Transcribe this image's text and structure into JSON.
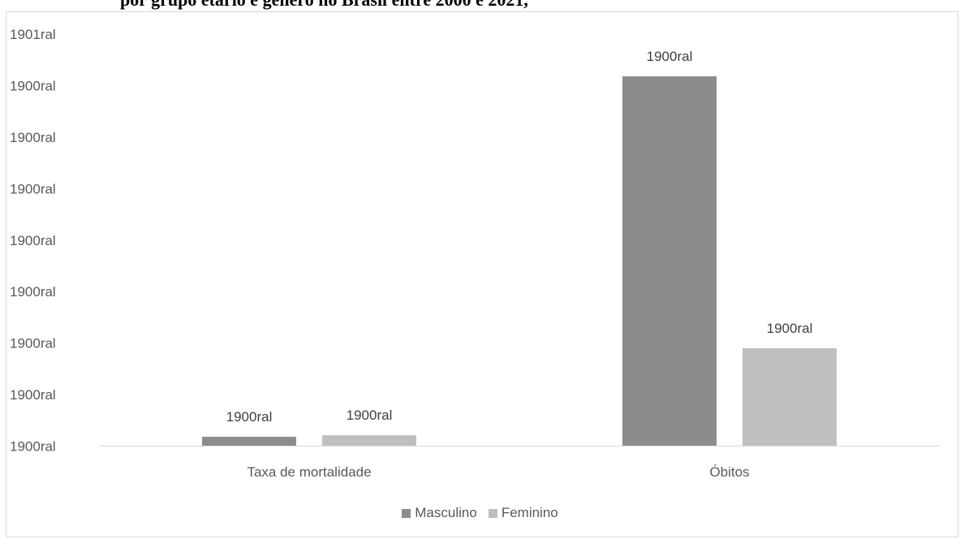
{
  "page_title": "por grupo etário e género no Brasil entre 2000 e 2021,",
  "chart_data": {
    "type": "bar",
    "categories": [
      "Taxa de mortalidade",
      "Óbitos"
    ],
    "y_tick_labels": [
      "1900ral",
      "1900ral",
      "1900ral",
      "1900ral",
      "1900ral",
      "1900ral",
      "1900ral",
      "1900ral",
      "1901ral"
    ],
    "ylim": [
      0,
      8
    ],
    "grid": false,
    "legend_position": "bottom",
    "series": [
      {
        "name": "Masculino",
        "color": "#8c8c8c",
        "values": [
          0.18,
          7.18
        ],
        "data_labels": [
          "1900ral",
          "1900ral"
        ]
      },
      {
        "name": "Feminino",
        "color": "#bfbfbf",
        "values": [
          0.21,
          1.9
        ],
        "data_labels": [
          "1900ral",
          "1900ral"
        ]
      }
    ]
  }
}
